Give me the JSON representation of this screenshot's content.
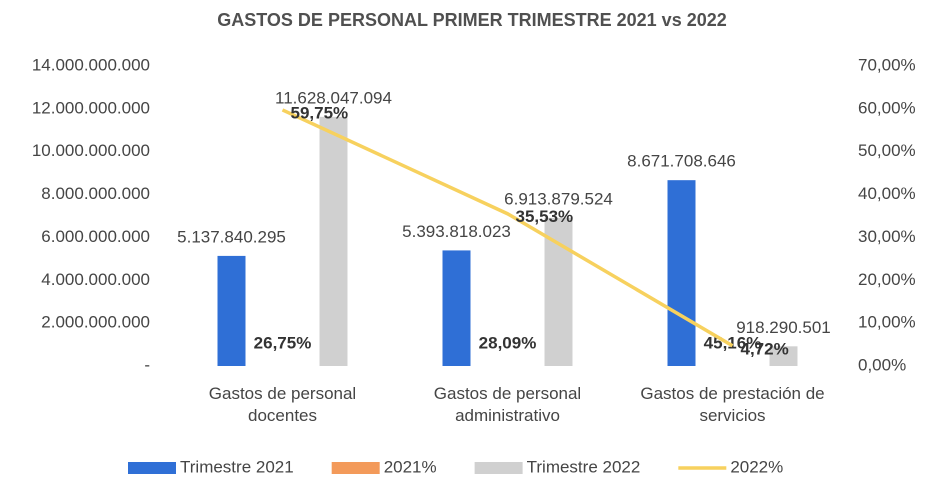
{
  "chart_data": {
    "type": "bar",
    "title": "GASTOS DE PERSONAL PRIMER TRIMESTRE 2021 vs 2022",
    "categories": [
      "Gastos de personal docentes",
      "Gastos de personal administrativo",
      "Gastos de prestación de servicios"
    ],
    "series": [
      {
        "name": "Trimestre 2021",
        "type": "bar",
        "color": "#2f6fd6",
        "values": [
          5137840295,
          5393818023,
          8671708646
        ],
        "value_labels": [
          "5.137.840.295",
          "5.393.818.023",
          "8.671.708.646"
        ]
      },
      {
        "name": "2021%",
        "type": "bar",
        "color": "#f39a5a",
        "values": [
          0.2675,
          0.2809,
          0.4516
        ],
        "value_labels": [
          "26,75%",
          "28,09%",
          "45,16%"
        ]
      },
      {
        "name": "Trimestre 2022",
        "type": "bar",
        "color": "#d0d0d0",
        "values": [
          11628047094,
          6913879524,
          918290501
        ],
        "value_labels": [
          "11.628.047.094",
          "6.913.879.524",
          "918.290.501"
        ]
      },
      {
        "name": "2022%",
        "type": "line",
        "axis": "y2",
        "color": "#f7d15e",
        "values": [
          59.75,
          35.53,
          4.72
        ],
        "value_labels": [
          "59,75%",
          "35,53%",
          "4,72%"
        ]
      }
    ],
    "ylim": [
      0,
      14000000000
    ],
    "yticks": [
      {
        "value": 0,
        "label": "-"
      },
      {
        "value": 2000000000,
        "label": "2.000.000.000"
      },
      {
        "value": 4000000000,
        "label": "4.000.000.000"
      },
      {
        "value": 6000000000,
        "label": "6.000.000.000"
      },
      {
        "value": 8000000000,
        "label": "8.000.000.000"
      },
      {
        "value": 10000000000,
        "label": "10.000.000.000"
      },
      {
        "value": 12000000000,
        "label": "12.000.000.000"
      },
      {
        "value": 14000000000,
        "label": "14.000.000.000"
      }
    ],
    "y2lim": [
      0,
      70
    ],
    "y2ticks": [
      {
        "value": 0,
        "label": "0,00%"
      },
      {
        "value": 10,
        "label": "10,00%"
      },
      {
        "value": 20,
        "label": "20,00%"
      },
      {
        "value": 30,
        "label": "30,00%"
      },
      {
        "value": 40,
        "label": "40,00%"
      },
      {
        "value": 50,
        "label": "50,00%"
      },
      {
        "value": 60,
        "label": "60,00%"
      },
      {
        "value": 70,
        "label": "70,00%"
      }
    ],
    "legend": "bottom",
    "grid": false
  }
}
